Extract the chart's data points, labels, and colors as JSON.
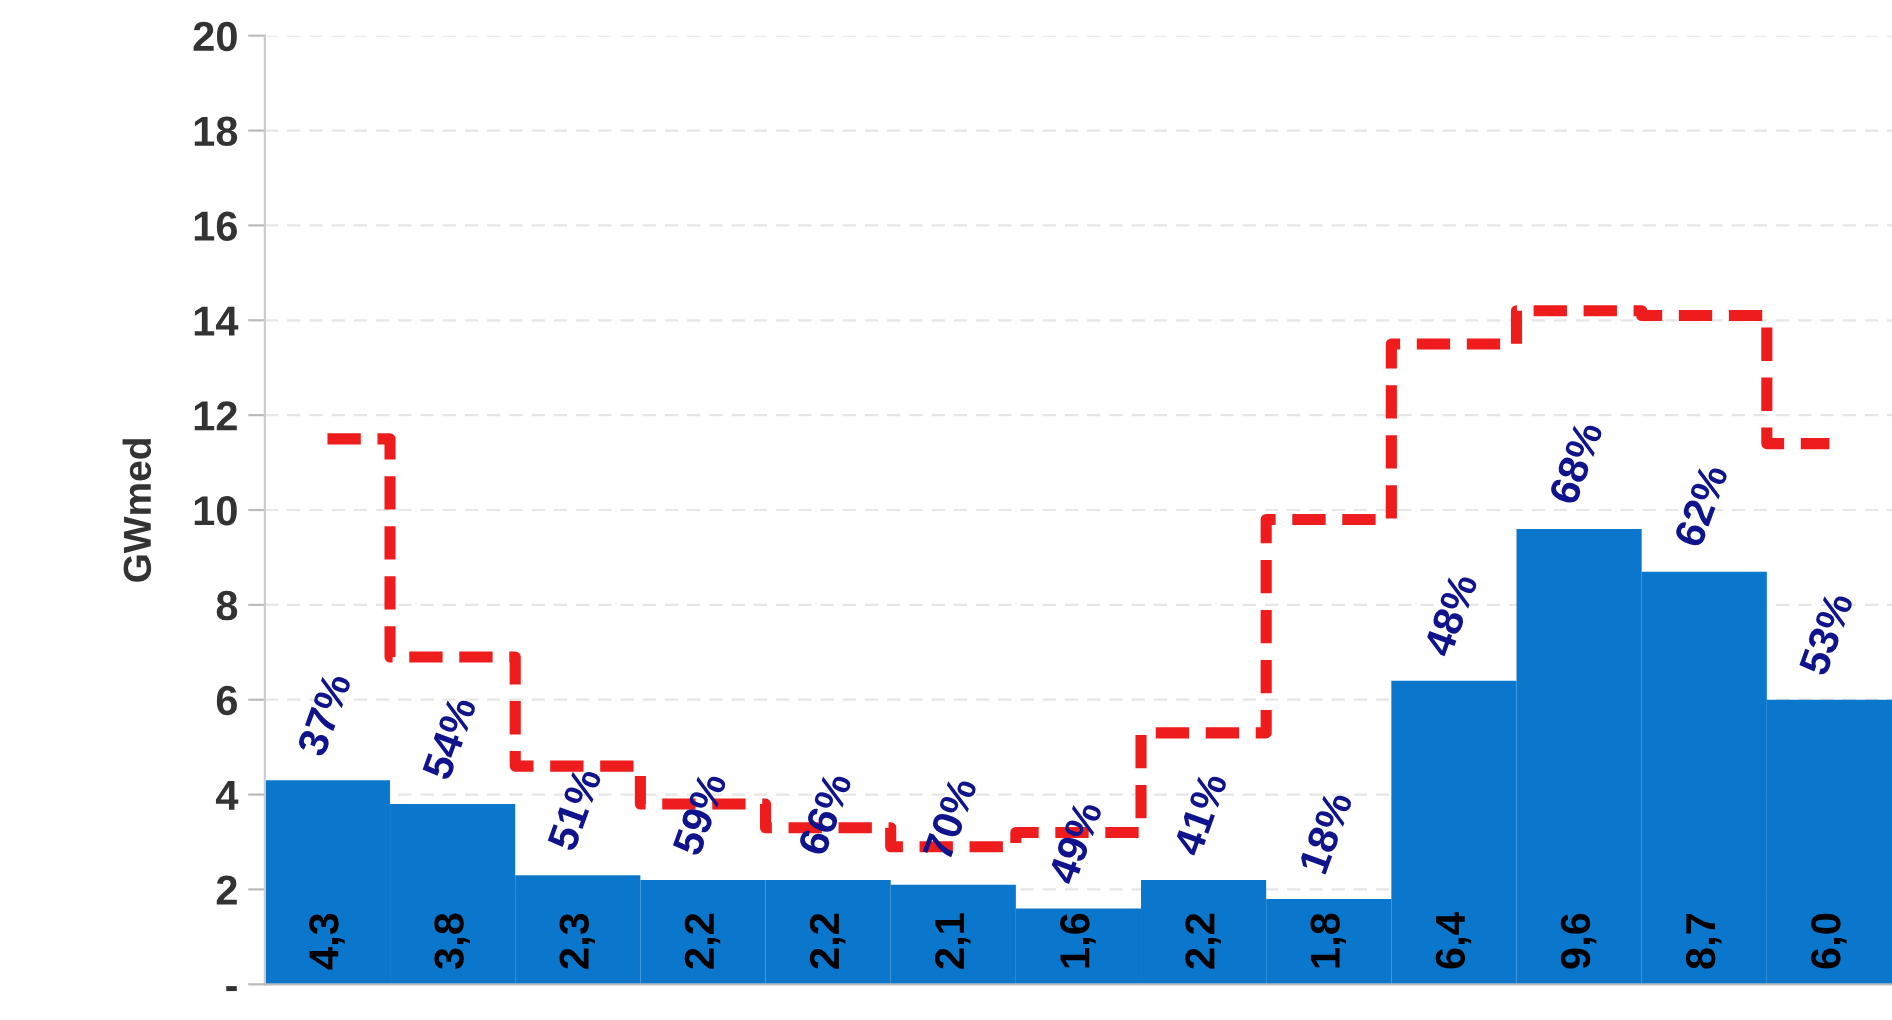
{
  "chart_data": {
    "type": "bar",
    "ylabel": "GWmed",
    "categories": [
      null,
      null,
      null,
      null,
      null,
      null,
      null,
      null,
      null,
      null,
      null,
      null,
      null
    ],
    "series": [
      {
        "color": "#0a77cc",
        "values": [
          4.3,
          3.8,
          2.3,
          2.2,
          2.2,
          2.1,
          1.6,
          2.2,
          1.8,
          6.4,
          9.6,
          8.7,
          6.0
        ],
        "value_labels": [
          "4,3",
          "3,8",
          "2,3",
          "2,2",
          "2,2",
          "2,1",
          "1,6",
          "2,2",
          "1,8",
          "6,4",
          "9,6",
          "8,7",
          "6,0"
        ]
      },
      {
        "type": "step",
        "color": "#ee1c1c",
        "line_style": "dashed",
        "values": [
          11.5,
          6.9,
          4.6,
          3.8,
          3.3,
          2.9,
          3.2,
          5.3,
          9.8,
          13.5,
          14.2,
          14.1,
          11.4
        ]
      }
    ],
    "annotations": [
      "37%",
      "54%",
      "51%",
      "59%",
      "66%",
      "70%",
      "49%",
      "41%",
      "18%",
      "48%",
      "68%",
      "62%",
      "53%"
    ],
    "ylim": [
      0,
      20
    ],
    "yticks": [
      {
        "value": 0,
        "label": "-"
      },
      2,
      4,
      6,
      8,
      10,
      12,
      14,
      16,
      18,
      20
    ],
    "grid": "y",
    "legend": false
  }
}
